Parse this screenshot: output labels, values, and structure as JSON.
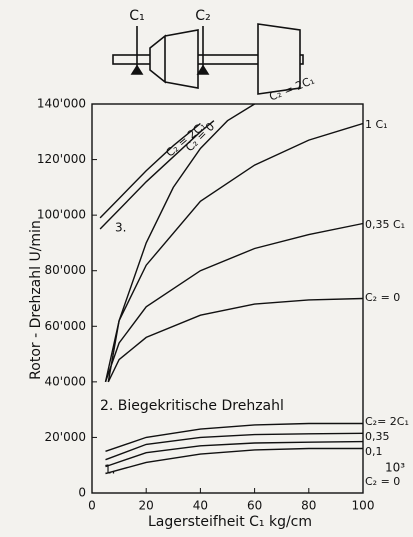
{
  "chart_data": {
    "type": "line",
    "diagram": {
      "labels": [
        "C₁",
        "C₂"
      ]
    },
    "ylabel": "Rotor - Drehzahl   U/min",
    "xlabel": "Lagersteifheit  C₁ kg/cm",
    "xlim": [
      0,
      100
    ],
    "xticks": [
      0,
      20,
      40,
      60,
      80,
      100
    ],
    "ylim": [
      0,
      140000
    ],
    "yticks": [
      {
        "value": 0,
        "label": "0"
      },
      {
        "value": 20000,
        "label": "20'000"
      },
      {
        "value": 40000,
        "label": "40'000"
      },
      {
        "value": 60000,
        "label": "60'000"
      },
      {
        "value": 80000,
        "label": "80'000"
      },
      {
        "value": 100000,
        "label": "100'000"
      },
      {
        "value": 120000,
        "label": "120'000"
      },
      {
        "value": 140000,
        "label": "140'000"
      }
    ],
    "color": "#111111",
    "series": [
      {
        "name": "1 C₁",
        "x": [
          5,
          10,
          20,
          40,
          60,
          80,
          100
        ],
        "values": [
          40000,
          62000,
          82000,
          105000,
          118000,
          127000,
          133000
        ]
      },
      {
        "name": "0,35 C₁",
        "x": [
          5,
          10,
          20,
          40,
          60,
          80,
          100
        ],
        "values": [
          40000,
          54000,
          67000,
          80000,
          88000,
          93000,
          97000
        ]
      },
      {
        "name": "C₂ = 0",
        "x": [
          6,
          10,
          20,
          40,
          60,
          80,
          100
        ],
        "values": [
          40000,
          48000,
          56000,
          64000,
          68000,
          69500,
          70000
        ]
      },
      {
        "name": "C₂ = 2C₁",
        "x": [
          6,
          10,
          20,
          30,
          40,
          50,
          60
        ],
        "values": [
          40000,
          62000,
          90000,
          110000,
          124000,
          134000,
          140000
        ]
      },
      {
        "name": "C₂ = 2C₁",
        "x": [
          3,
          10,
          20,
          30,
          40
        ],
        "values": [
          99000,
          106000,
          116000,
          125000,
          133000
        ]
      },
      {
        "name": "C₂ = 0",
        "x": [
          3,
          10,
          20,
          30,
          40,
          45
        ],
        "values": [
          95000,
          102000,
          112000,
          121000,
          130000,
          134000
        ]
      },
      {
        "name": "C₂= 2C₁",
        "x": [
          5,
          20,
          40,
          60,
          80,
          100
        ],
        "values": [
          15000,
          20000,
          23000,
          24500,
          25000,
          25000
        ]
      },
      {
        "name": "0,35",
        "x": [
          5,
          20,
          40,
          60,
          80,
          100
        ],
        "values": [
          12000,
          17500,
          20000,
          21000,
          21300,
          21500
        ]
      },
      {
        "name": "0,1",
        "x": [
          5,
          20,
          40,
          60,
          80,
          100
        ],
        "values": [
          9500,
          14500,
          17000,
          18000,
          18300,
          18500
        ]
      },
      {
        "name": "C₂ = 0",
        "x": [
          5,
          20,
          40,
          60,
          80,
          100
        ],
        "values": [
          7000,
          11000,
          14000,
          15500,
          16000,
          16000
        ]
      }
    ],
    "annotations": [
      "3.",
      "2. Biegekritische Drehzahl",
      "1.",
      "10³"
    ]
  }
}
